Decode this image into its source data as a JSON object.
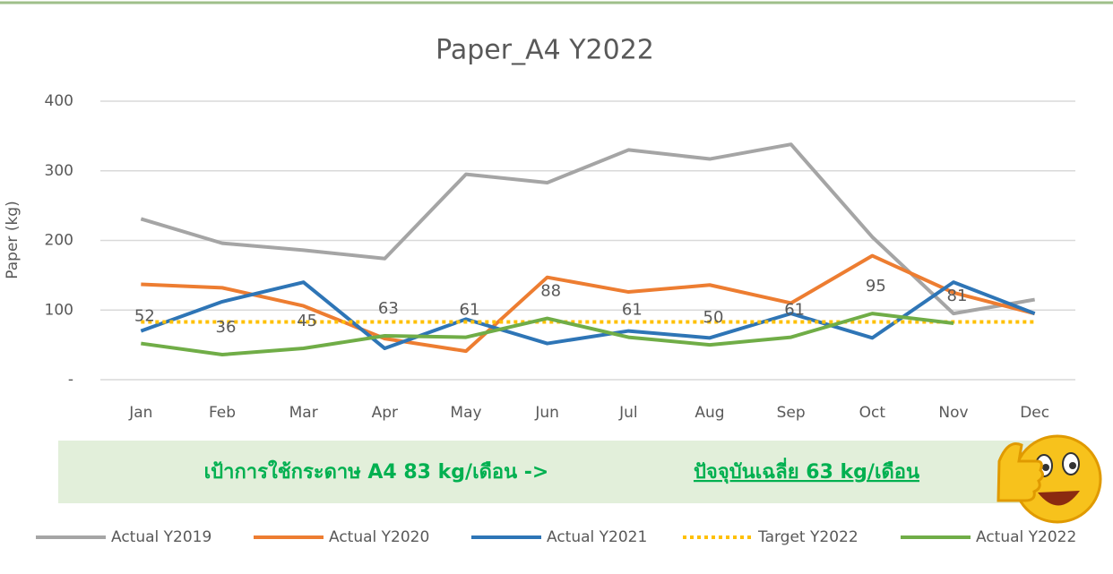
{
  "chart_data": {
    "type": "line",
    "title": "Paper_A4 Y2022",
    "y_label": "Paper (kg)",
    "categories": [
      "Jan",
      "Feb",
      "Mar",
      "Apr",
      "May",
      "Jun",
      "Jul",
      "Aug",
      "Sep",
      "Oct",
      "Nov",
      "Dec"
    ],
    "ylim": [
      0,
      400
    ],
    "yticks": [
      {
        "value": 0,
        "label": "-"
      },
      100,
      200,
      300,
      400
    ],
    "grid": true,
    "legend": "bottom",
    "series": [
      {
        "name": "Actual Y2019",
        "color": "#a5a5a5",
        "values": [
          231,
          196,
          186,
          174,
          295,
          283,
          330,
          317,
          338,
          205,
          95,
          115
        ]
      },
      {
        "name": "Actual Y2020",
        "color": "#ed7d31",
        "values": [
          137,
          132,
          106,
          59,
          41,
          147,
          126,
          136,
          110,
          178,
          125,
          95
        ]
      },
      {
        "name": "Actual Y2021",
        "color": "#2e75b6",
        "values": [
          70,
          112,
          140,
          45,
          87,
          52,
          70,
          60,
          95,
          60,
          140,
          95
        ]
      },
      {
        "name": "Target Y2022",
        "color": "#ffc000",
        "style": "dotted",
        "values": [
          83,
          83,
          83,
          83,
          83,
          83,
          83,
          83,
          83,
          83,
          83,
          83
        ]
      },
      {
        "name": "Actual Y2022",
        "color": "#70ad47",
        "data_labels": true,
        "values": [
          52,
          36,
          45,
          63,
          61,
          88,
          61,
          50,
          61,
          95,
          81,
          null
        ]
      }
    ],
    "annotation": [
      "เป้าการใช้กระดาษ A4 83 kg/เดือน  ->",
      "ปัจจุบันเฉลี่ย 63 kg/เดือน"
    ]
  }
}
